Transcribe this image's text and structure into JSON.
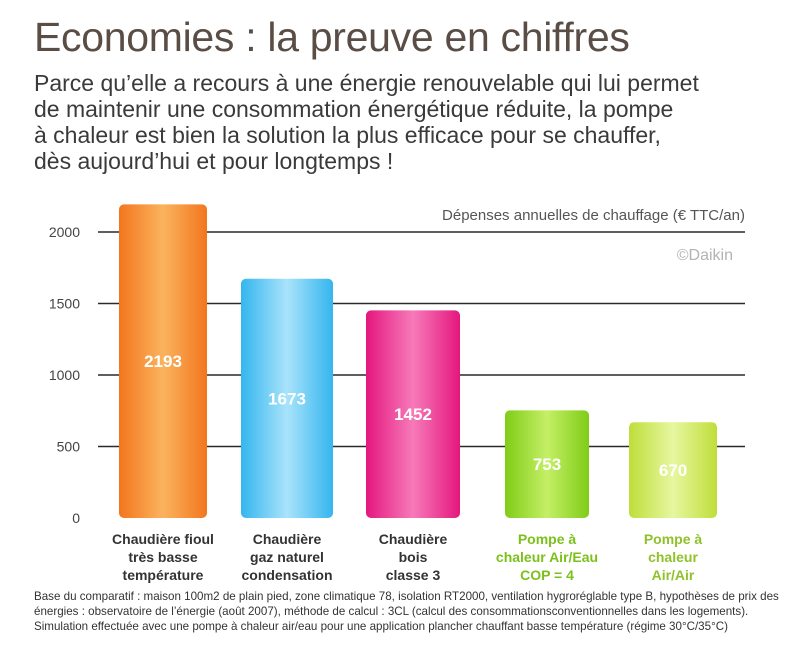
{
  "title": "Economies : la preuve en chiffres",
  "intro": [
    "Parce qu’elle a recours à une énergie renouvelable qui lui permet",
    "de maintenir une consommation énergétique  réduite, la pompe",
    "à chaleur est bien la solution la plus efficace pour se chauffer,",
    "dès aujourd’hui et pour longtemps !"
  ],
  "chart_data": {
    "type": "bar",
    "title": "Dépenses annuelles de chauffage (€ TTC/an)",
    "watermark": "©Daikin",
    "categories": [
      [
        "Chaudière fioul",
        "très basse",
        "température"
      ],
      [
        "Chaudière",
        "gaz naturel",
        "condensation"
      ],
      [
        "Chaudière",
        "bois",
        "classe 3"
      ],
      [
        "Pompe à",
        "chaleur Air/Eau",
        "COP = 4"
      ],
      [
        "Pompe à",
        "chaleur",
        "Air/Air"
      ]
    ],
    "values": [
      2193,
      1673,
      1452,
      753,
      670
    ],
    "value_labels": [
      "2193",
      "1673",
      "1452",
      "753",
      "670"
    ],
    "yticks": [
      0,
      500,
      1000,
      1500,
      2000
    ],
    "ylim": [
      0,
      2000
    ],
    "grid": true,
    "colors": [
      "#f2761d",
      "#34b6ee",
      "#e4177e",
      "#80cc17",
      "#bfde3a"
    ],
    "light_colors": [
      "#fbb35e",
      "#a9e3fb",
      "#f67ab9",
      "#c4ef66",
      "#e6f7a0"
    ],
    "label_colors": [
      "#333333",
      "#333333",
      "#333333",
      "#7cc11a",
      "#8fc22a"
    ]
  },
  "footnote": [
    "Base du comparatif : maison 100m2 de plain pied, zone climatique 78, isolation RT2000, ventilation hygroréglable type B, hypothèses de prix des",
    "énergies : observatoire de l’énergie (août 2007), méthode de calcul : 3CL (calcul des consommationsconventionnelles dans les logements).",
    "Simulation effectuée avec une pompe à chaleur air/eau pour une application plancher chauffant basse température (régime 30°C/35°C)"
  ]
}
